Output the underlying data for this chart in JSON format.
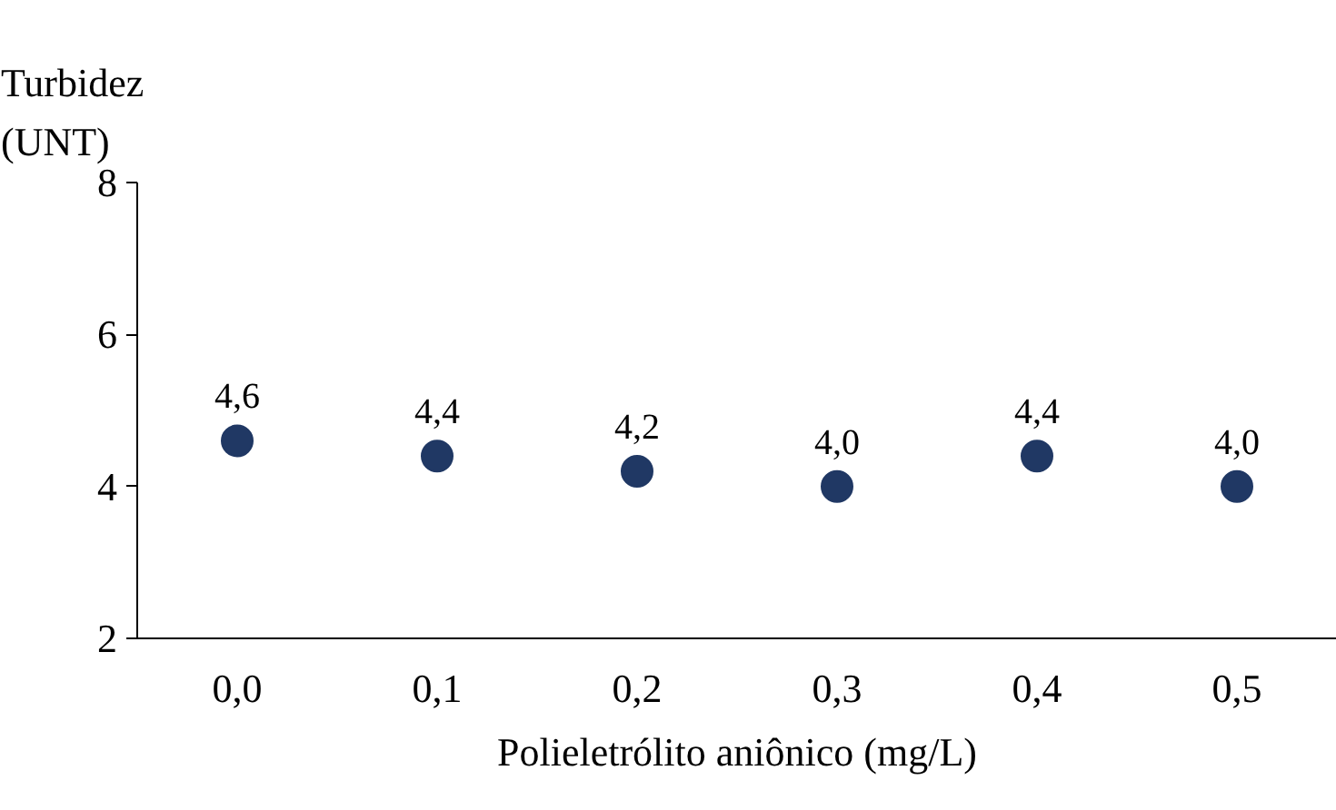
{
  "chart_data": {
    "type": "scatter",
    "xlabel": "Polieletrólito aniônico (mg/L)",
    "ylabel": "Turbidez (UNT)",
    "categories": [
      "0,0",
      "0,1",
      "0,2",
      "0,3",
      "0,4",
      "0,5"
    ],
    "values": [
      4.6,
      4.4,
      4.2,
      4.0,
      4.4,
      4.0
    ],
    "value_labels": [
      "4,6",
      "4,4",
      "4,2",
      "4,0",
      "4,4",
      "4,0"
    ],
    "color": "#203864",
    "marker": "circle",
    "ylim": [
      2,
      8
    ],
    "yticks": [
      2,
      4,
      6,
      8
    ],
    "grid": false,
    "legend": false
  }
}
